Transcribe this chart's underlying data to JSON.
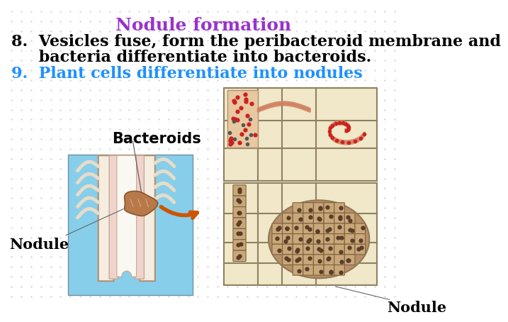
{
  "title": "Nodule formation",
  "title_color": "#9932CC",
  "title_fontsize": 18,
  "line8_text1": "8.  Vesicles fuse, form the peribacteroid membrane and",
  "line8_text2": "     bacteria differentiate into bacteroids.",
  "line8_color": "#000000",
  "line8_fontsize": 16,
  "line9_text": "9.  Plant cells differentiate into nodules",
  "line9_color": "#1E90FF",
  "line9_fontsize": 16,
  "bg_color": "#ffffff",
  "dot_color": "#b8c4d0",
  "bacteroids_label": "Bacteroids",
  "nodule_label_left": "Nodule",
  "nodule_label_right": "Nodule",
  "left_bg_color": "#87CEEB",
  "root_outer_color": "#f5ede0",
  "root_inner_color": "#f0d8d0",
  "root_edge_color": "#c8a888",
  "nodule_color": "#b87848",
  "nodule_edge": "#8a5530",
  "hair_color": "#e8dcc8",
  "right_bg_color": "#f0e8c8",
  "cell_wall_color": "#a89870",
  "infect_cell_color": "#e8c8a0",
  "infect_edge_color": "#b09070",
  "red_dot_color": "#cc2020",
  "thread_color": "#d08060",
  "bact_fill_color": "#b89068",
  "bact_dot_color": "#5a3c28",
  "arrow_color": "#cc5500"
}
